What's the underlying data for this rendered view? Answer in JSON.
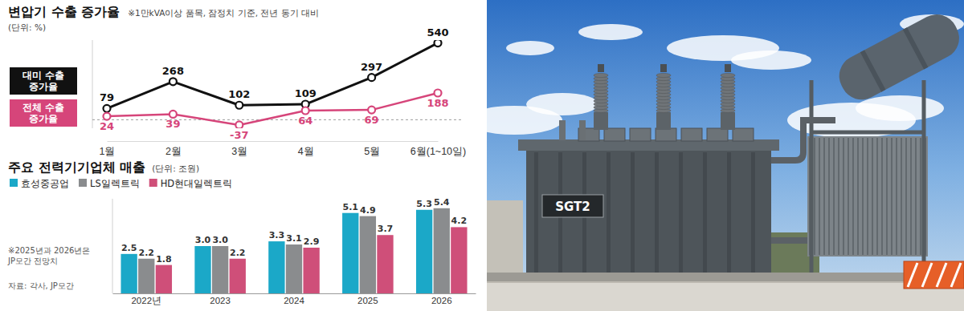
{
  "chart_data": [
    {
      "type": "line",
      "title": "변압기 수출 증가율",
      "subtitle": "※1만kVA이상 품목, 잠정치 기준, 전년 동기 대비",
      "ylabel": "(단위: %)",
      "categories": [
        "1월",
        "2월",
        "3월",
        "4월",
        "5월",
        "6월(1~10일)"
      ],
      "series": [
        {
          "name": "대미 수출 증가율",
          "color": "#111111",
          "values": [
            79,
            268,
            102,
            109,
            297,
            540
          ]
        },
        {
          "name": "전체 수출 증가율",
          "color": "#d6457a",
          "values": [
            24,
            39,
            -37,
            64,
            69,
            188
          ]
        }
      ],
      "ylim": [
        -60,
        560
      ],
      "yticks": [
        0
      ],
      "grid": true,
      "tick_labels": "x",
      "data_labels": true,
      "legend": "left",
      "marker": "circle"
    },
    {
      "type": "bar",
      "title": "주요 전력기기업체 매출",
      "ylabel": "(단위: 조원)",
      "categories": [
        "2022년",
        "2023",
        "2024",
        "2025",
        "2026"
      ],
      "series": [
        {
          "name": "효성중공업",
          "color": "#1ba8c8",
          "values": [
            2.5,
            3.0,
            3.3,
            5.1,
            5.3
          ],
          "value_labels": [
            "2.5",
            "3.0",
            "3.3",
            "5.1",
            "5.3"
          ]
        },
        {
          "name": "LS일렉트릭",
          "color": "#8a8c8e",
          "values": [
            2.2,
            3.0,
            3.1,
            4.9,
            5.4
          ],
          "value_labels": [
            "2.2",
            "3.0",
            "3.1",
            "4.9",
            "5.4"
          ]
        },
        {
          "name": "HD현대일렉트릭",
          "color": "#cf4f79",
          "values": [
            1.8,
            2.2,
            2.9,
            3.7,
            4.2
          ],
          "value_labels": [
            "1.8",
            "2.2",
            "2.9",
            "3.7",
            "4.2"
          ]
        }
      ],
      "ylim": [
        0,
        6
      ],
      "tick_labels": "x",
      "data_labels": true,
      "legend": "top-left",
      "annotations": [
        "※2025년과 2026년은 JP모간 전망치",
        "자료: 각사, JP모간"
      ]
    }
  ],
  "photo": {
    "label": "SGT2"
  }
}
